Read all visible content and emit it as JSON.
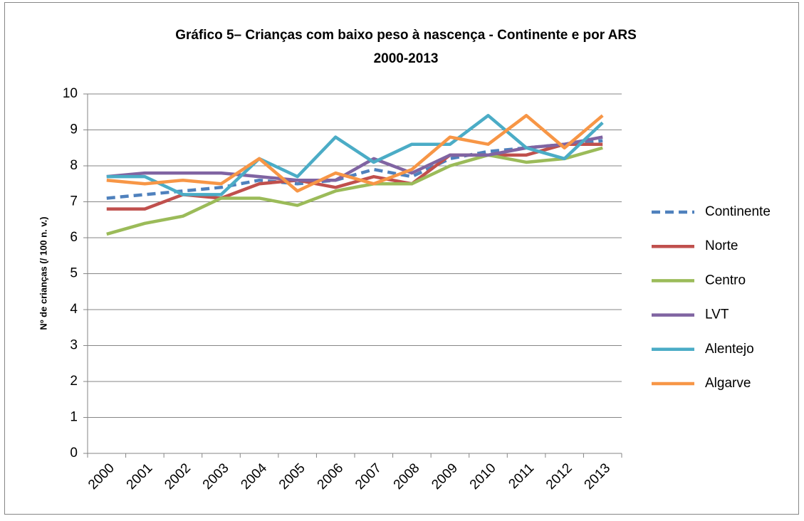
{
  "chart_data": {
    "type": "line",
    "title": [
      "Gráfico 5– Crianças com baixo peso à nascença - Continente e por ARS",
      "2000-2013"
    ],
    "y_label": "Nº de crianças (/ 100 n. v.)",
    "categories": [
      "2000",
      "2001",
      "2002",
      "2003",
      "2004",
      "2005",
      "2006",
      "2007",
      "2008",
      "2009",
      "2010",
      "2011",
      "2012",
      "2013"
    ],
    "series": [
      {
        "name": "Continente",
        "color": "#4f81bd",
        "style": "dashed",
        "values": [
          7.1,
          7.2,
          7.3,
          7.4,
          7.6,
          7.5,
          7.6,
          7.9,
          7.7,
          8.2,
          8.4,
          8.5,
          8.6,
          8.7
        ]
      },
      {
        "name": "Norte",
        "color": "#c0504d",
        "values": [
          6.8,
          6.8,
          7.2,
          7.1,
          7.5,
          7.6,
          7.4,
          7.7,
          7.5,
          8.3,
          8.3,
          8.3,
          8.6,
          8.6
        ]
      },
      {
        "name": "Centro",
        "color": "#9bbb59",
        "values": [
          6.1,
          6.4,
          6.6,
          7.1,
          7.1,
          6.9,
          7.3,
          7.5,
          7.5,
          8.0,
          8.3,
          8.1,
          8.2,
          8.5
        ]
      },
      {
        "name": "LVT",
        "color": "#8064a2",
        "values": [
          7.7,
          7.8,
          7.8,
          7.8,
          7.7,
          7.6,
          7.6,
          8.2,
          7.8,
          8.3,
          8.3,
          8.5,
          8.6,
          8.8
        ]
      },
      {
        "name": "Alentejo",
        "color": "#4bacc6",
        "values": [
          7.7,
          7.7,
          7.2,
          7.2,
          8.2,
          7.7,
          8.8,
          8.1,
          8.6,
          8.6,
          9.4,
          8.5,
          8.2,
          9.2
        ]
      },
      {
        "name": "Algarve",
        "color": "#f79646",
        "values": [
          7.6,
          7.5,
          7.6,
          7.5,
          8.2,
          7.3,
          7.8,
          7.5,
          7.9,
          8.8,
          8.6,
          9.4,
          8.5,
          9.4
        ]
      }
    ],
    "ylim": [
      0,
      10
    ],
    "yticks": [
      0,
      1,
      2,
      3,
      4,
      5,
      6,
      7,
      8,
      9,
      10
    ],
    "grid": true,
    "legend": "right"
  }
}
